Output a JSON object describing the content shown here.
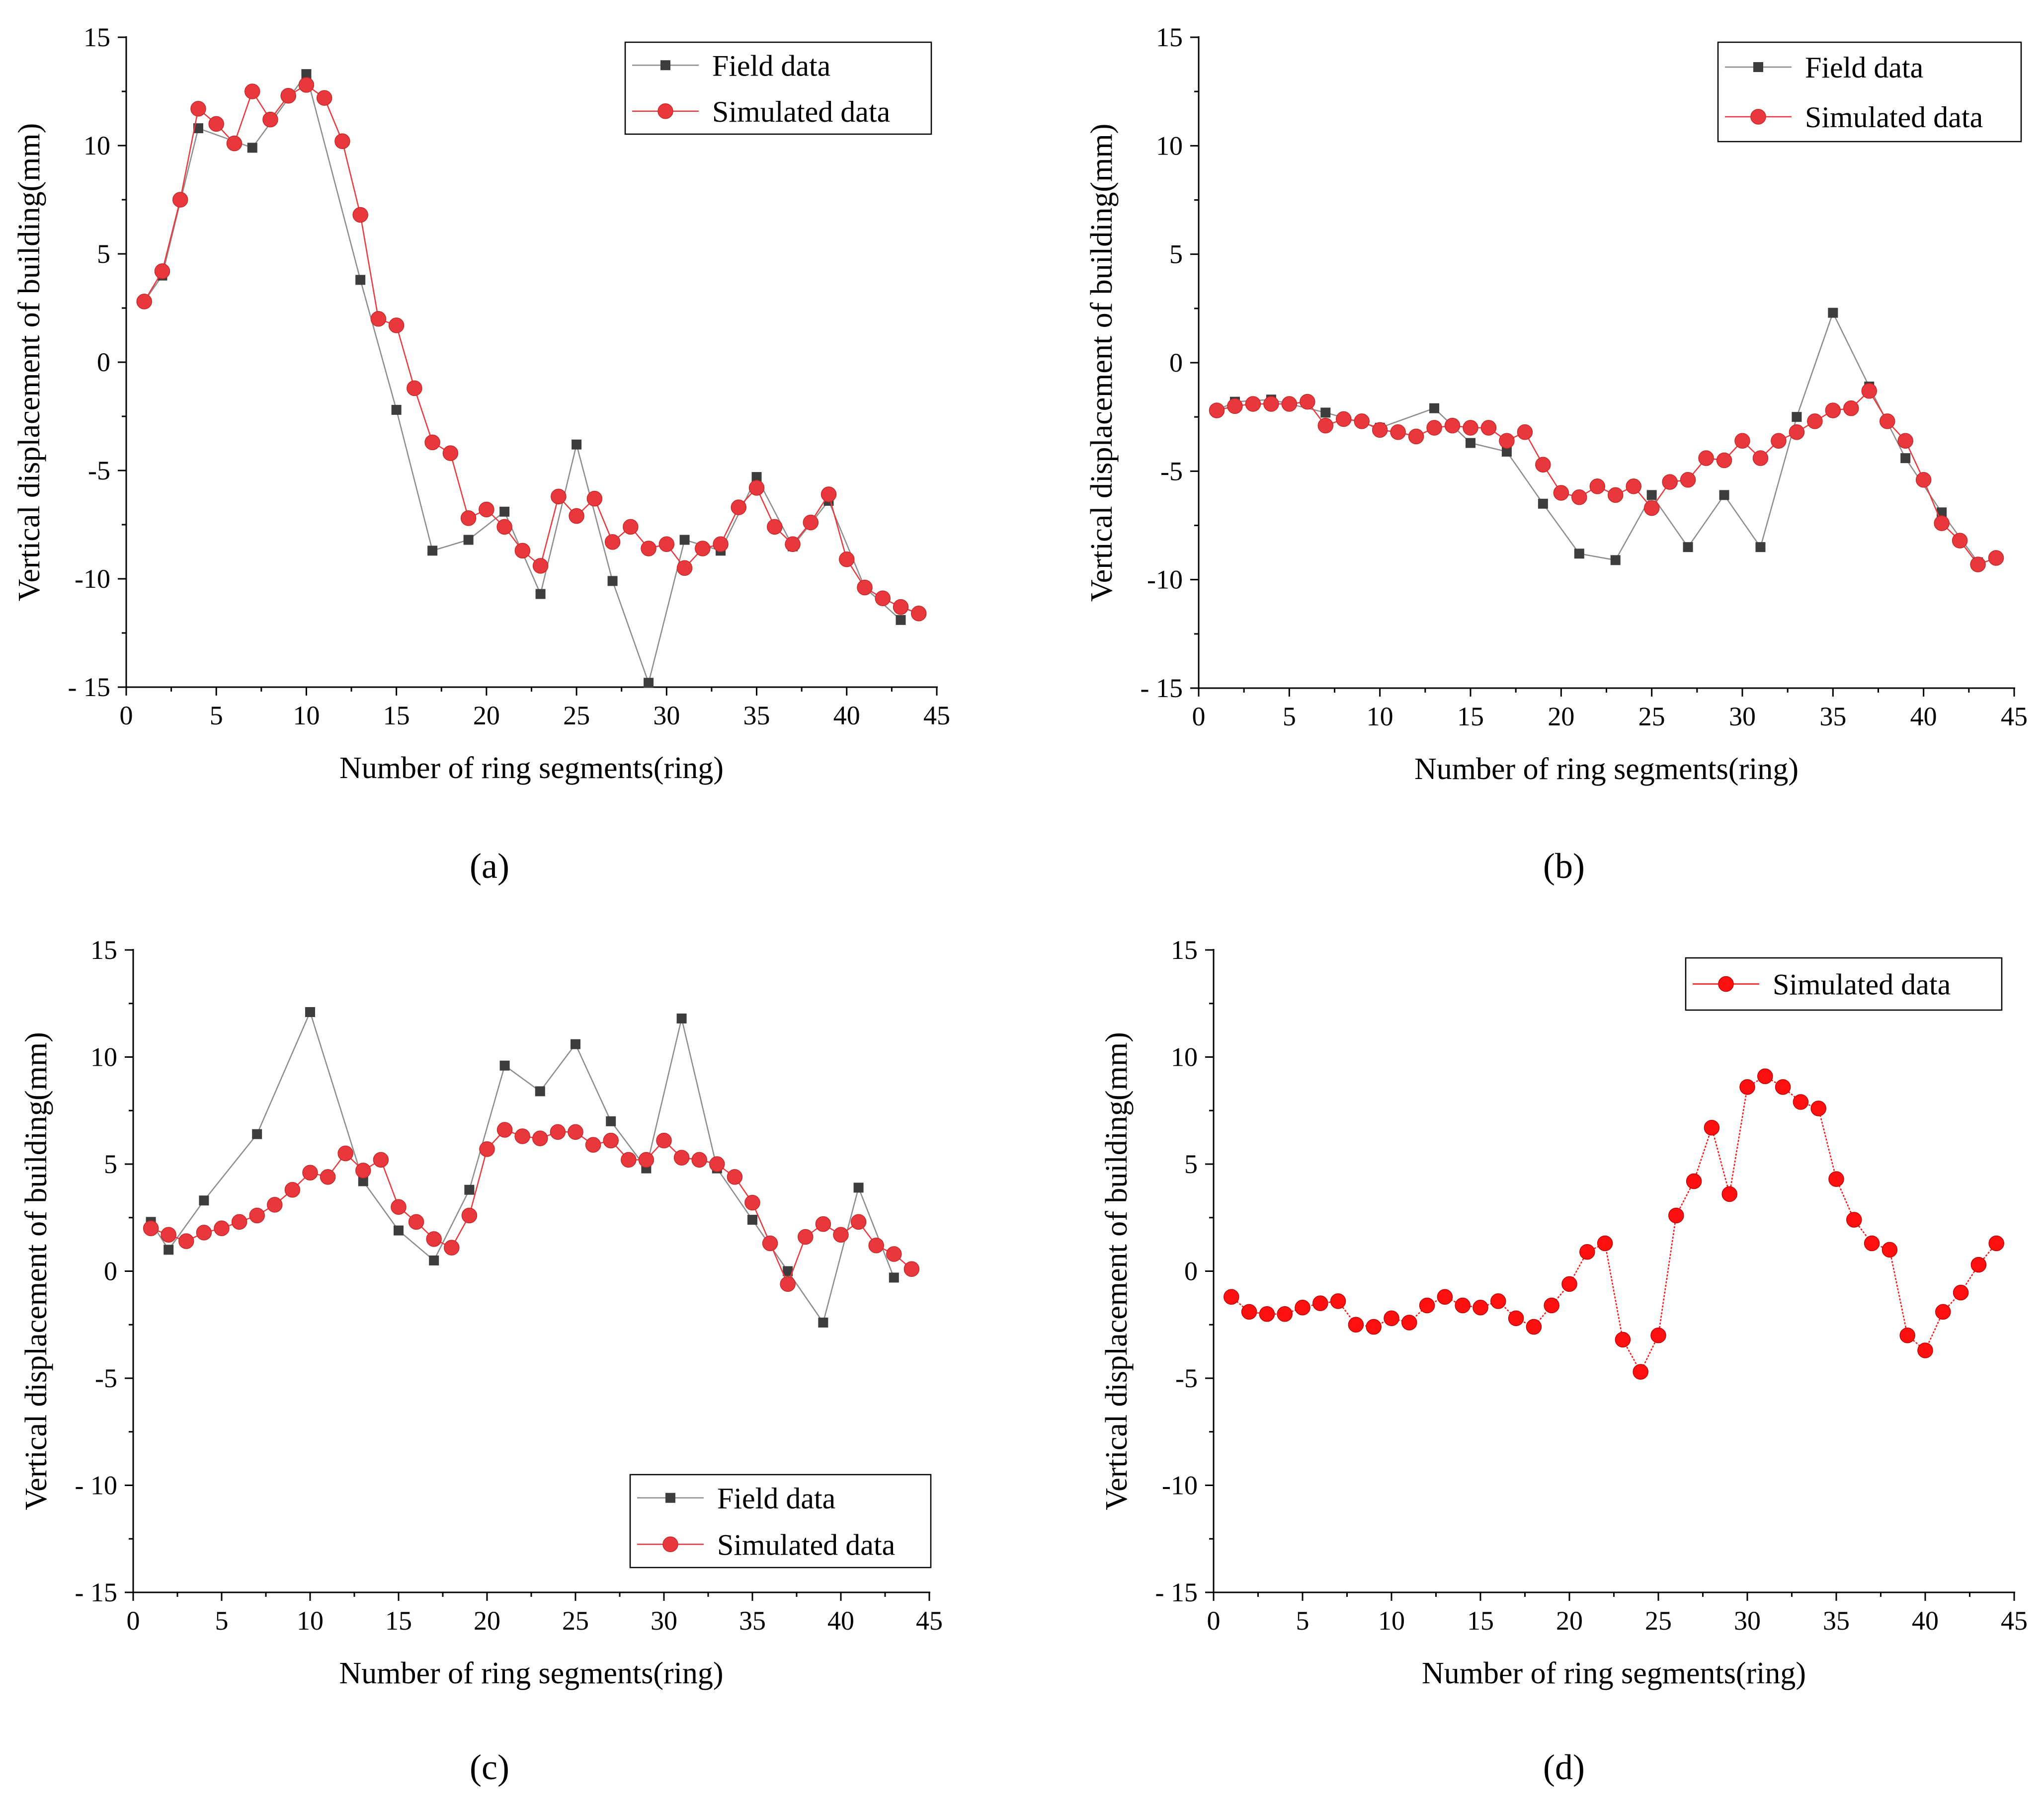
{
  "colors": {
    "field": "#3d3d3d",
    "field_line": "#8c8c8c",
    "simulated": "#e8383d",
    "simulated_d": "#ff1010",
    "axis": "#000000"
  },
  "chart_data": [
    {
      "id": "a",
      "panel_label": "(a)",
      "type": "line",
      "xlabel": "Number of ring segments(ring)",
      "ylabel": "Vertical displacement of building(mm)",
      "xlim": [
        0,
        45
      ],
      "ylim": [
        -15,
        15
      ],
      "xticks": [
        0,
        5,
        10,
        15,
        20,
        25,
        30,
        35,
        40,
        45
      ],
      "yticks": [
        15,
        10,
        5,
        0,
        -5,
        -10,
        -15
      ],
      "ytick_labels": [
        "15",
        "10",
        "5",
        "0",
        "-5",
        "-10",
        "- 15"
      ],
      "legend_position": "top-right",
      "series": [
        {
          "name": "Field data",
          "marker": "square",
          "x": [
            1,
            2,
            4,
            7,
            10,
            13,
            15,
            17,
            19,
            21,
            23,
            25,
            27,
            29,
            31,
            33,
            35,
            37,
            39,
            41,
            43
          ],
          "y": [
            2.8,
            4.0,
            10.8,
            9.9,
            13.3,
            3.8,
            -2.2,
            -8.7,
            -8.2,
            -6.9,
            -10.7,
            -3.8,
            -10.1,
            -14.8,
            -8.2,
            -8.7,
            -5.3,
            -8.5,
            -6.4,
            -10.4,
            -11.9
          ]
        },
        {
          "name": "Simulated data",
          "marker": "circle",
          "x": [
            1,
            2,
            3,
            4,
            5,
            6,
            7,
            8,
            9,
            10,
            11,
            12,
            13,
            14,
            15,
            16,
            17,
            18,
            19,
            20,
            21,
            22,
            23,
            24,
            25,
            26,
            27,
            28,
            29,
            30,
            31,
            32,
            33,
            34,
            35,
            36,
            37,
            38,
            39,
            40,
            41,
            42,
            43,
            44
          ],
          "y": [
            2.8,
            4.2,
            7.5,
            11.7,
            11.0,
            10.1,
            12.5,
            11.2,
            12.3,
            12.8,
            12.2,
            10.2,
            6.8,
            2.0,
            1.7,
            -1.2,
            -3.7,
            -4.2,
            -7.2,
            -6.8,
            -7.6,
            -8.7,
            -9.4,
            -6.2,
            -7.1,
            -6.3,
            -8.3,
            -7.6,
            -8.6,
            -8.4,
            -9.5,
            -8.6,
            -8.4,
            -6.7,
            -5.8,
            -7.6,
            -8.4,
            -7.4,
            -6.1,
            -9.1,
            -10.4,
            -10.9,
            -11.3,
            -11.6
          ]
        }
      ]
    },
    {
      "id": "b",
      "panel_label": "(b)",
      "type": "line",
      "xlabel": "Number of ring segments(ring)",
      "ylabel": "Vertical displacement of building(mm)",
      "xlim": [
        0,
        45
      ],
      "ylim": [
        -15,
        15
      ],
      "xticks": [
        0,
        5,
        10,
        15,
        20,
        25,
        30,
        35,
        40,
        45
      ],
      "yticks": [
        15,
        10,
        5,
        0,
        -5,
        -10,
        -15
      ],
      "ytick_labels": [
        "15",
        "10",
        "5",
        "0",
        "-5",
        "-10",
        "- 15"
      ],
      "legend_position": "top-right",
      "series": [
        {
          "name": "Field data",
          "marker": "square",
          "x": [
            1,
            2,
            4,
            7,
            10,
            13,
            15,
            17,
            19,
            21,
            23,
            25,
            27,
            29,
            31,
            33,
            35,
            37,
            39,
            41,
            43
          ],
          "y": [
            -2.2,
            -1.8,
            -1.7,
            -2.3,
            -3.0,
            -2.1,
            -3.7,
            -4.1,
            -6.5,
            -8.8,
            -9.1,
            -6.1,
            -8.5,
            -6.1,
            -8.5,
            -2.5,
            2.3,
            -1.1,
            -4.4,
            -6.9,
            -9.2
          ]
        },
        {
          "name": "Simulated data",
          "marker": "circle",
          "x": [
            1,
            2,
            3,
            4,
            5,
            6,
            7,
            8,
            9,
            10,
            11,
            12,
            13,
            14,
            15,
            16,
            17,
            18,
            19,
            20,
            21,
            22,
            23,
            24,
            25,
            26,
            27,
            28,
            29,
            30,
            31,
            32,
            33,
            34,
            35,
            36,
            37,
            38,
            39,
            40,
            41,
            42,
            43,
            44
          ],
          "y": [
            -2.2,
            -2.0,
            -1.9,
            -1.9,
            -1.9,
            -1.8,
            -2.9,
            -2.6,
            -2.7,
            -3.1,
            -3.2,
            -3.4,
            -3.0,
            -2.9,
            -3.0,
            -3.0,
            -3.6,
            -3.2,
            -4.7,
            -6.0,
            -6.2,
            -5.7,
            -6.1,
            -5.7,
            -6.7,
            -5.5,
            -5.4,
            -4.4,
            -4.5,
            -3.6,
            -4.4,
            -3.6,
            -3.2,
            -2.7,
            -2.2,
            -2.1,
            -1.3,
            -2.7,
            -3.6,
            -5.4,
            -7.4,
            -8.2,
            -9.3,
            -9.0
          ]
        }
      ]
    },
    {
      "id": "c",
      "panel_label": "(c)",
      "type": "line",
      "xlabel": "Number of ring segments(ring)",
      "ylabel": "Vertical displacement of building(mm)",
      "xlim": [
        0,
        45
      ],
      "ylim": [
        -15,
        15
      ],
      "xticks": [
        0,
        5,
        10,
        15,
        20,
        25,
        30,
        35,
        40,
        45
      ],
      "yticks": [
        15,
        10,
        5,
        0,
        -5,
        -10,
        -15
      ],
      "ytick_labels": [
        "15",
        "10",
        "5",
        "0",
        "-5",
        "- 10",
        "- 15"
      ],
      "legend_position": "bottom-right",
      "series": [
        {
          "name": "Field data",
          "marker": "square",
          "x": [
            1,
            2,
            4,
            7,
            10,
            13,
            15,
            17,
            19,
            21,
            23,
            25,
            27,
            29,
            31,
            33,
            35,
            37,
            39,
            41,
            43
          ],
          "y": [
            2.3,
            1.0,
            3.3,
            6.4,
            12.1,
            4.2,
            1.9,
            0.5,
            3.8,
            9.6,
            8.4,
            10.6,
            7.0,
            4.8,
            11.8,
            4.8,
            2.4,
            0.0,
            -2.4,
            3.9,
            -0.3
          ]
        },
        {
          "name": "Simulated data",
          "marker": "circle",
          "x": [
            1,
            2,
            3,
            4,
            5,
            6,
            7,
            8,
            9,
            10,
            11,
            12,
            13,
            14,
            15,
            16,
            17,
            18,
            19,
            20,
            21,
            22,
            23,
            24,
            25,
            26,
            27,
            28,
            29,
            30,
            31,
            32,
            33,
            34,
            35,
            36,
            37,
            38,
            39,
            40,
            41,
            42,
            43,
            44
          ],
          "y": [
            2.0,
            1.7,
            1.4,
            1.8,
            2.0,
            2.3,
            2.6,
            3.1,
            3.8,
            4.6,
            4.4,
            5.5,
            4.7,
            5.2,
            3.0,
            2.3,
            1.5,
            1.1,
            2.6,
            5.7,
            6.6,
            6.3,
            6.2,
            6.5,
            6.5,
            5.9,
            6.1,
            5.2,
            5.2,
            6.1,
            5.3,
            5.2,
            5.0,
            4.4,
            3.2,
            1.3,
            -0.6,
            1.6,
            2.2,
            1.7,
            2.3,
            1.2,
            0.8,
            0.1
          ]
        }
      ]
    },
    {
      "id": "d",
      "panel_label": "(d)",
      "type": "line",
      "xlabel": "Number of ring segments(ring)",
      "ylabel": "Vertical displacement of building(mm)",
      "xlim": [
        0,
        45
      ],
      "ylim": [
        -15,
        15
      ],
      "xticks": [
        0,
        5,
        10,
        15,
        20,
        25,
        30,
        35,
        40,
        45
      ],
      "yticks": [
        15,
        10,
        5,
        0,
        -5,
        -10,
        -15
      ],
      "ytick_labels": [
        "15",
        "10",
        "5",
        "0",
        "-5",
        "-10",
        "- 15"
      ],
      "legend_position": "top-right",
      "series": [
        {
          "name": "Simulated data",
          "marker": "circle",
          "x": [
            1,
            2,
            3,
            4,
            5,
            6,
            7,
            8,
            9,
            10,
            11,
            12,
            13,
            14,
            15,
            16,
            17,
            18,
            19,
            20,
            21,
            22,
            23,
            24,
            25,
            26,
            27,
            28,
            29,
            30,
            31,
            32,
            33,
            34,
            35,
            36,
            37,
            38,
            39,
            40,
            41,
            42,
            43,
            44
          ],
          "y": [
            -1.2,
            -1.9,
            -2.0,
            -2.0,
            -1.7,
            -1.5,
            -1.4,
            -2.5,
            -2.6,
            -2.2,
            -2.4,
            -1.6,
            -1.2,
            -1.6,
            -1.7,
            -1.4,
            -2.2,
            -2.6,
            -1.6,
            -0.6,
            0.9,
            1.3,
            -3.2,
            -4.7,
            -3.0,
            2.6,
            4.2,
            6.7,
            3.6,
            8.6,
            9.1,
            8.6,
            7.9,
            7.6,
            4.3,
            2.4,
            1.3,
            1.0,
            -3.0,
            -3.7,
            -1.9,
            -1.0,
            0.3,
            1.3
          ]
        }
      ]
    }
  ]
}
